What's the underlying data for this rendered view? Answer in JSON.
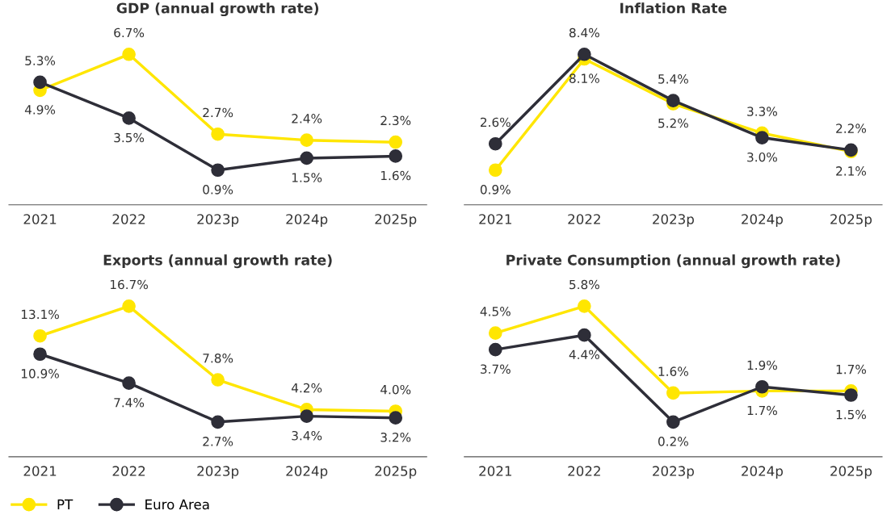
{
  "chart_data": [
    {
      "type": "line",
      "title": "GDP (annual growth rate)",
      "categories": [
        "2021",
        "2022",
        "2023p",
        "2024p",
        "2025p"
      ],
      "tick_labels": "x",
      "marker": "circle",
      "line_style": "solid",
      "legend": "bottom left",
      "series": [
        {
          "name": "PT",
          "color": "#ffe600",
          "values": [
            4.9,
            6.7,
            2.7,
            2.4,
            2.3
          ],
          "value_labels": [
            "4.9%",
            "6.7%",
            "2.7%",
            "2.4%",
            "2.3%"
          ]
        },
        {
          "name": "Euro Area",
          "color": "#2e2e38",
          "values": [
            5.3,
            3.5,
            0.9,
            1.5,
            1.6
          ],
          "value_labels": [
            "5.3%",
            "3.5%",
            "0.9%",
            "1.5%",
            "1.6%"
          ]
        }
      ]
    },
    {
      "type": "line",
      "title": "Inflation Rate",
      "categories": [
        "2021",
        "2022",
        "2023p",
        "2024p",
        "2025p"
      ],
      "tick_labels": "x",
      "marker": "circle",
      "line_style": "solid",
      "series": [
        {
          "color": "#ffe600",
          "values": [
            0.9,
            8.1,
            5.2,
            3.3,
            2.1
          ],
          "value_labels": [
            "0.9%",
            "8.1%",
            "5.2%",
            "3.3%",
            "2.1%"
          ]
        },
        {
          "color": "#2e2e38",
          "values": [
            2.6,
            8.4,
            5.4,
            3.0,
            2.2
          ],
          "value_labels": [
            "2.6%",
            "8.4%",
            "5.4%",
            "3.0%",
            "2.2%"
          ]
        }
      ]
    },
    {
      "type": "line",
      "title": "Exports (annual growth rate)",
      "categories": [
        "2021",
        "2022",
        "2023p",
        "2024p",
        "2025p"
      ],
      "tick_labels": "x",
      "marker": "circle",
      "line_style": "solid",
      "series": [
        {
          "color": "#ffe600",
          "values": [
            13.1,
            16.7,
            7.8,
            4.2,
            4.0
          ],
          "value_labels": [
            "13.1%",
            "16.7%",
            "7.8%",
            "4.2%",
            "4.0%"
          ]
        },
        {
          "color": "#2e2e38",
          "values": [
            10.9,
            7.4,
            2.7,
            3.4,
            3.2
          ],
          "value_labels": [
            "10.9%",
            "7.4%",
            "2.7%",
            "3.4%",
            "3.2%"
          ]
        }
      ]
    },
    {
      "type": "line",
      "title": "Private Consumption (annual growth rate)",
      "categories": [
        "2021",
        "2022",
        "2023p",
        "2024p",
        "2025p"
      ],
      "tick_labels": "x",
      "marker": "circle",
      "line_style": "solid",
      "series": [
        {
          "color": "#ffe600",
          "values": [
            4.5,
            5.8,
            1.6,
            1.7,
            1.7
          ],
          "value_labels": [
            "4.5%",
            "5.8%",
            "1.6%",
            "1.7%",
            "1.7%"
          ]
        },
        {
          "color": "#2e2e38",
          "values": [
            3.7,
            4.4,
            0.2,
            1.9,
            1.5
          ],
          "value_labels": [
            "3.7%",
            "4.4%",
            "0.2%",
            "1.9%",
            "1.5%"
          ]
        }
      ]
    }
  ]
}
